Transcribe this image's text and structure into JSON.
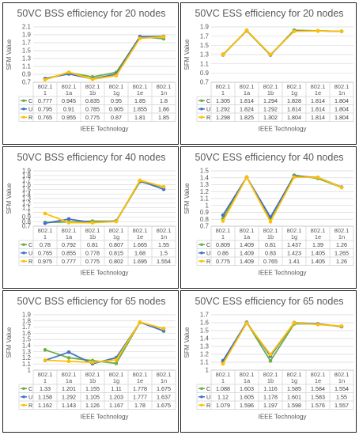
{
  "chart_data": [
    {
      "type": "line",
      "title": "50VC BSS efficiency for 20 nodes",
      "xlabel": "IEEE Technology",
      "ylabel": "SFM Value",
      "categories": [
        [
          "802.1",
          "1"
        ],
        [
          "802.1",
          "1a"
        ],
        [
          "802.1",
          "1b"
        ],
        [
          "802.1",
          "1g"
        ],
        [
          "802.1",
          "1e"
        ],
        [
          "802.1",
          "1n"
        ]
      ],
      "yticks": [
        "0.7",
        "0.9",
        "1.1",
        "1.3",
        "1.5",
        "1.7",
        "1.9",
        "2.1"
      ],
      "ylim": [
        0.7,
        2.1
      ],
      "grid": true,
      "series": [
        {
          "name": "C",
          "color": "#70ad47",
          "values": [
            0.777,
            0.945,
            0.835,
            0.95,
            1.85,
            1.8
          ],
          "labels": [
            "0.777",
            "0.945",
            "0.835",
            "0.95",
            "1.85",
            "1.8"
          ]
        },
        {
          "name": "U",
          "color": "#4472c4",
          "values": [
            0.795,
            0.91,
            0.785,
            0.905,
            1.855,
            1.86
          ],
          "labels": [
            "0.795",
            "0.91",
            "0.785",
            "0.905",
            "1.855",
            "1.86"
          ]
        },
        {
          "name": "R",
          "color": "#ffc000",
          "values": [
            0.765,
            0.955,
            0.775,
            0.87,
            1.81,
            1.85
          ],
          "labels": [
            "0.765",
            "0.955",
            "0.775",
            "0.87",
            "1.81",
            "1.85"
          ]
        }
      ]
    },
    {
      "type": "line",
      "title": "50VC ESS efficiency for 20 nodes",
      "xlabel": "IEEE Technology",
      "ylabel": "SFM Value",
      "categories": [
        [
          "802.1",
          "1"
        ],
        [
          "802.1",
          "1a"
        ],
        [
          "802.1",
          "1b"
        ],
        [
          "802.1",
          "1g"
        ],
        [
          "802.1",
          "1e"
        ],
        [
          "802.1",
          "1n"
        ]
      ],
      "yticks": [
        "0.7",
        "0.9",
        "1.1",
        "1.3",
        "1.5",
        "1.7",
        "1.9"
      ],
      "ylim": [
        0.7,
        1.9
      ],
      "grid": true,
      "series": [
        {
          "name": "C",
          "color": "#70ad47",
          "values": [
            1.305,
            1.814,
            1.294,
            1.828,
            1.814,
            1.804
          ],
          "labels": [
            "1.305",
            "1.814",
            "1.294",
            "1.828",
            "1.814",
            "1.804"
          ]
        },
        {
          "name": "U",
          "color": "#4472c4",
          "values": [
            1.292,
            1.824,
            1.292,
            1.814,
            1.814,
            1.804
          ],
          "labels": [
            "1.292",
            "1.824",
            "1.292",
            "1.814",
            "1.814",
            "1.804"
          ]
        },
        {
          "name": "R",
          "color": "#ffc000",
          "values": [
            1.298,
            1.825,
            1.302,
            1.804,
            1.814,
            1.804
          ],
          "labels": [
            "1.298",
            "1.825",
            "1.302",
            "1.804",
            "1.814",
            "1.804"
          ]
        }
      ]
    },
    {
      "type": "line",
      "title": "50VC BSS efficiency for 40 nodes",
      "xlabel": "IEEE Technology",
      "ylabel": "SFM Value",
      "categories": [
        [
          "802.1",
          "1"
        ],
        [
          "802.1",
          "1a"
        ],
        [
          "802.1",
          "1b"
        ],
        [
          "802.1",
          "1g"
        ],
        [
          "802.1",
          "1e"
        ],
        [
          "802.1",
          "1n"
        ]
      ],
      "yticks": [
        "0.7",
        "0.8",
        "0.9",
        "1",
        "1.1",
        "1.2",
        "1.3",
        "1.4",
        "1.5",
        "1.6",
        "1.7",
        "1.8",
        "1.9"
      ],
      "ylim": [
        0.7,
        1.9
      ],
      "grid": true,
      "series": [
        {
          "name": "C",
          "color": "#70ad47",
          "values": [
            0.78,
            0.792,
            0.81,
            0.807,
            1.665,
            1.55
          ],
          "labels": [
            "0.78",
            "0.792",
            "0.81",
            "0.807",
            "1.665",
            "1.55"
          ]
        },
        {
          "name": "U",
          "color": "#4472c4",
          "values": [
            0.765,
            0.855,
            0.778,
            0.815,
            1.68,
            1.5
          ],
          "labels": [
            "0.765",
            "0.855",
            "0.778",
            "0.815",
            "1.68",
            "1.5"
          ]
        },
        {
          "name": "R",
          "color": "#ffc000",
          "values": [
            0.975,
            0.777,
            0.775,
            0.802,
            1.695,
            1.554
          ],
          "labels": [
            "0.975",
            "0.777",
            "0.775",
            "0.802",
            "1.695",
            "1.554"
          ]
        }
      ]
    },
    {
      "type": "line",
      "title": "50VC ESS efficiency for 40 nodes",
      "xlabel": "IEEE Technology",
      "ylabel": "SFM Value",
      "categories": [
        [
          "802.1",
          "1"
        ],
        [
          "802.1",
          "1a"
        ],
        [
          "802.1",
          "1b"
        ],
        [
          "802.1",
          "1g"
        ],
        [
          "802.1",
          "1e"
        ],
        [
          "802.1",
          "1n"
        ]
      ],
      "yticks": [
        "0.7",
        "0.8",
        "0.9",
        "1",
        "1.1",
        "1.2",
        "1.3",
        "1.4",
        "1.5"
      ],
      "ylim": [
        0.7,
        1.5
      ],
      "grid": true,
      "series": [
        {
          "name": "C",
          "color": "#70ad47",
          "values": [
            0.809,
            1.409,
            0.81,
            1.437,
            1.39,
            1.26
          ],
          "labels": [
            "0.809",
            "1.409",
            "0.81",
            "1.437",
            "1.39",
            "1.26"
          ]
        },
        {
          "name": "U",
          "color": "#4472c4",
          "values": [
            0.86,
            1.409,
            0.83,
            1.423,
            1.405,
            1.265
          ],
          "labels": [
            "0.86",
            "1.409",
            "0.83",
            "1.423",
            "1.405",
            "1.265"
          ]
        },
        {
          "name": "R",
          "color": "#ffc000",
          "values": [
            0.775,
            1.409,
            0.765,
            1.41,
            1.405,
            1.26
          ],
          "labels": [
            "0.775",
            "1.409",
            "0.765",
            "1.41",
            "1.405",
            "1.26"
          ]
        }
      ]
    },
    {
      "type": "line",
      "title": "50VC BSS efficiency for 65 nodes",
      "xlabel": "IEEE Technology",
      "ylabel": "SFM Value",
      "categories": [
        [
          "802.1",
          "1"
        ],
        [
          "802.1",
          "1a"
        ],
        [
          "802.1",
          "1b"
        ],
        [
          "802.1",
          "1g"
        ],
        [
          "802.1",
          "1e"
        ],
        [
          "802.1",
          "1n"
        ]
      ],
      "yticks": [
        "1",
        "1.1",
        "1.2",
        "1.3",
        "1.4",
        "1.5",
        "1.6",
        "1.7",
        "1.8",
        "1.9"
      ],
      "ylim": [
        1.0,
        1.9
      ],
      "grid": true,
      "series": [
        {
          "name": "C",
          "color": "#70ad47",
          "values": [
            1.33,
            1.201,
            1.155,
            1.11,
            1.778,
            1.675
          ],
          "labels": [
            "1.33",
            "1.201",
            "1.155",
            "1.11",
            "1.778",
            "1.675"
          ]
        },
        {
          "name": "U",
          "color": "#4472c4",
          "values": [
            1.158,
            1.292,
            1.105,
            1.203,
            1.777,
            1.637
          ],
          "labels": [
            "1.158",
            "1.292",
            "1.105",
            "1.203",
            "1.777",
            "1.637"
          ]
        },
        {
          "name": "R",
          "color": "#ffc000",
          "values": [
            1.162,
            1.143,
            1.126,
            1.167,
            1.78,
            1.675
          ],
          "labels": [
            "1.162",
            "1.143",
            "1.126",
            "1.167",
            "1.78",
            "1.675"
          ]
        }
      ]
    },
    {
      "type": "line",
      "title": "50VC ESS efficiency for 65 nodes",
      "xlabel": "IEEE Technology",
      "ylabel": "SFM Value",
      "categories": [
        [
          "802.1",
          "1"
        ],
        [
          "802.1",
          "1a"
        ],
        [
          "802.1",
          "1b"
        ],
        [
          "802.1",
          "1g"
        ],
        [
          "802.1",
          "1e"
        ],
        [
          "802.1",
          "1n"
        ]
      ],
      "yticks": [
        "1",
        "1.1",
        "1.2",
        "1.3",
        "1.4",
        "1.5",
        "1.6",
        "1.7"
      ],
      "ylim": [
        1.0,
        1.7
      ],
      "grid": true,
      "series": [
        {
          "name": "C",
          "color": "#70ad47",
          "values": [
            1.088,
            1.603,
            1.116,
            1.585,
            1.584,
            1.554
          ],
          "labels": [
            "1.088",
            "1.603",
            "1.116",
            "1.585",
            "1.584",
            "1.554"
          ]
        },
        {
          "name": "U",
          "color": "#4472c4",
          "values": [
            1.12,
            1.605,
            1.178,
            1.601,
            1.583,
            1.55
          ],
          "labels": [
            "1.12",
            "1.605",
            "1.178",
            "1.601",
            "1.583",
            "1.55"
          ]
        },
        {
          "name": "R",
          "color": "#ffc000",
          "values": [
            1.079,
            1.596,
            1.197,
            1.598,
            1.576,
            1.557
          ],
          "labels": [
            "1.079",
            "1.596",
            "1.197",
            "1.598",
            "1.576",
            "1.557"
          ]
        }
      ]
    }
  ]
}
